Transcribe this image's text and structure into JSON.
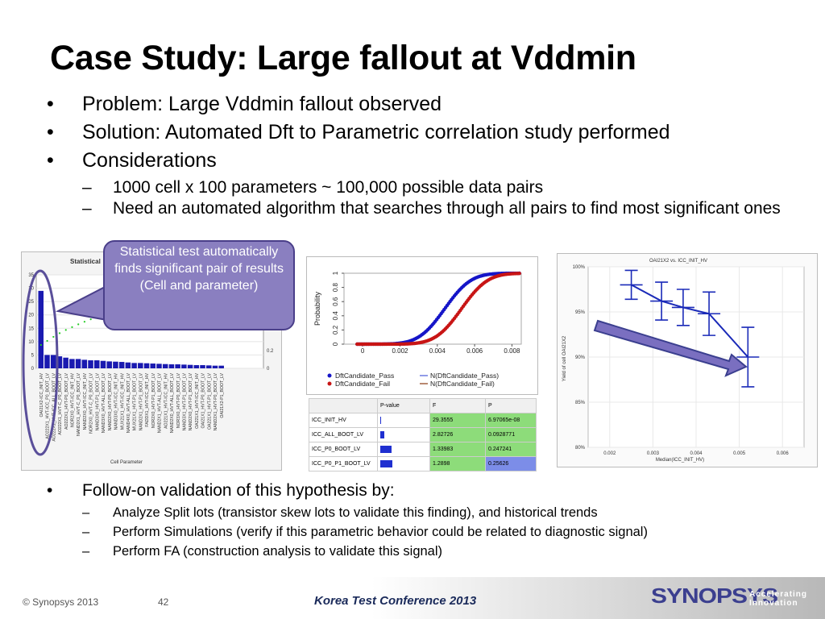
{
  "slide": {
    "title": "Case Study: Large fallout at Vddmin",
    "bullets": [
      "Problem: Large Vddmin fallout observed",
      "Solution: Automated Dft to Parametric correlation study performed",
      "Considerations"
    ],
    "sub_bullets": [
      "1000 cell x 100 parameters ~ 100,000 possible data pairs",
      "Need an automated algorithm that searches through all pairs to find most significant ones"
    ],
    "followon": "Follow-on validation of this hypothesis by:",
    "followon_items": [
      "Analyze Split lots (transistor skew lots to validate this finding), and historical trends",
      "Perform Simulations (verify if this parametric behavior could be related to diagnostic signal)",
      "Perform FA (construction analysis to validate this signal)"
    ],
    "callout": "Statistical test automatically finds significant pair of results (Cell and parameter)",
    "bullet_glyph": "•",
    "dash_glyph": "–"
  },
  "footer": {
    "copyright": "© Synopsys 2013",
    "page": "42",
    "conference": "Korea Test Conference 2013",
    "logo": "SYNOPSYS",
    "tagline_1": "Accelerating",
    "tagline_2": "Innovation"
  },
  "chart_data": [
    {
      "type": "bar",
      "title": "Statistical",
      "xlabel": "Cell Parameter",
      "yticks": [
        "0",
        "5",
        "10",
        "15",
        "20",
        "25",
        "30",
        "35"
      ],
      "y2ticks": [
        "0",
        "0.2"
      ],
      "ylim": [
        0,
        35
      ],
      "values": [
        29,
        5,
        5,
        4.5,
        4,
        3.5,
        3.5,
        3.2,
        3,
        3,
        2.8,
        2.6,
        2.5,
        2.4,
        2.2,
        2,
        2,
        1.9,
        1.8,
        1.7,
        1.6,
        1.5,
        1.5,
        1.4,
        1.3,
        1.2,
        1.2,
        1.1,
        1,
        1
      ],
      "categories": [
        "OAI21X2-ICC_INIT_HV",
        "AO222X1_HVT-ICC_P0_BOOT_LV",
        "AO222X1_HVT-ICC_ALL_BOOT_LV",
        "AO222X1_HVT-C_P0_BOOT_LV",
        "AO222X1_HVT-P0_BOOT_LV",
        "NOR2X0_HVT-ICC_INIT_HV",
        "NAND2X1_HVT-C_P0_BOOT_LV",
        "NAND2X0_HVT-ICC_INIT_HV",
        "NOR2X0_HVT-C_P0_BOOT_LV",
        "NAND3X0_HVT-P1_BOOT_LV",
        "NAND3X0_HVT-ALL_BOOT_LV",
        "NAND2X0_HVT-P0_BOOT_LV",
        "NAND3X0_HVT-ICC_INIT_HV",
        "MUX21X1_HVT-ICC_INIT_HV",
        "NAND4X0_HVT-ALL_BOOT_LV",
        "MUX21X1_HVT-P1_BOOT_LV",
        "NAND2X1_HVT-P1_BOOT_LV",
        "FADDX1_HVT-ICC_INIT_HV",
        "NOR2X0_HVT-P1_BOOT_LV",
        "NAND2X1_HVT-ALL_BOOT_LV",
        "AO221X1_HVT-ICC_INIT_HV",
        "NAND2X0_HVT-ALL_BOOT_LV",
        "NOR3X0_HVT-P0_BOOT_LV",
        "NAND3X1_HVT-P1_BOOT_LV",
        "NAND2X0_HVT-P1_BOOT_LV",
        "OA221X1_HVT-ICC_INIT_HV",
        "OAI21X1_HVT-P0_BOOT_LV",
        "OA221X1_HVT-P1_BOOT_LV",
        "NAND2X1_HVT-P0_BOOT_LV",
        "OAI21X2-P1_BOOT_LV"
      ]
    },
    {
      "type": "scatter",
      "ylabel": "Probability",
      "xticks": [
        "0",
        "0.002",
        "0.004",
        "0.006",
        "0.008"
      ],
      "yticks": [
        "0",
        "0.2",
        "0.4",
        "0.6",
        "0.8",
        "1"
      ],
      "xlim": [
        -0.001,
        0.0085
      ],
      "ylim": [
        0,
        1
      ],
      "legend": [
        "DftCandidate_Pass",
        "DftCandidate_Fail",
        "N(DftCandidate_Pass)",
        "N(DftCandidate_Fail)"
      ],
      "pass_mu": 0.0044,
      "pass_sigma": 0.0011,
      "fail_mu": 0.0053,
      "fail_sigma": 0.0011
    },
    {
      "type": "table",
      "headers": [
        "",
        "P-value",
        "F",
        "P"
      ],
      "rows": [
        {
          "param": "ICC_INIT_HV",
          "bar": 0.0,
          "f": "29.3555",
          "p": "6.97065e-08"
        },
        {
          "param": "ICC_ALL_BOOT_LV",
          "bar": 0.1,
          "f": "2.82726",
          "p": "0.0928771"
        },
        {
          "param": "ICC_P0_BOOT_LV",
          "bar": 0.25,
          "f": "1.33983",
          "p": "0.247241"
        },
        {
          "param": "ICC_P0_P1_BOOT_LV",
          "bar": 0.26,
          "f": "1.2898",
          "p": "0.25626"
        }
      ]
    },
    {
      "type": "line",
      "title": "OAI21X2 vs. ICC_INIT_HV",
      "xlabel": "Median(ICC_INIT_HV)",
      "ylabel": "Yield of cell OAI21X2",
      "xticks": [
        "0.002",
        "0.003",
        "0.004",
        "0.005",
        "0.006"
      ],
      "yticks": [
        "80%",
        "85%",
        "90%",
        "95%",
        "100%"
      ],
      "xlim": [
        0.0015,
        0.0065
      ],
      "ylim": [
        80,
        100
      ],
      "x": [
        0.0025,
        0.0032,
        0.0037,
        0.0043,
        0.0052
      ],
      "y": [
        98,
        96.2,
        95.5,
        94.8,
        90
      ],
      "err": [
        1.6,
        2.1,
        2.0,
        2.4,
        3.3
      ]
    }
  ]
}
